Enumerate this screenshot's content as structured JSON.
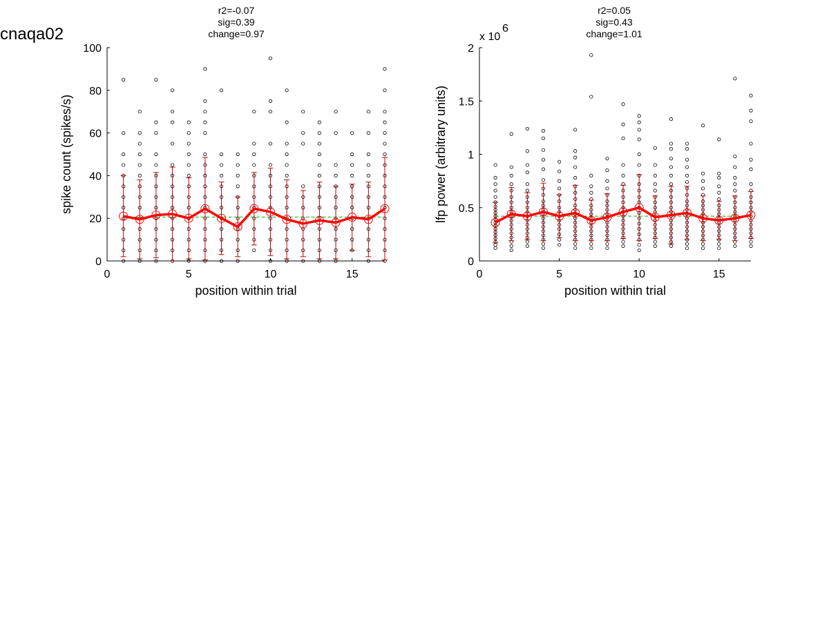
{
  "figure_title": "cnaqa02",
  "chart_data": [
    {
      "type": "scatter",
      "title_lines": [
        "r2=-0.07",
        "sig=0.39",
        "change=0.97"
      ],
      "xlabel": "position within trial",
      "ylabel": "spike count (spikes/s)",
      "xlim": [
        0,
        17
      ],
      "ylim": [
        0,
        100
      ],
      "xticks": [
        0,
        5,
        10,
        15
      ],
      "yticks": [
        0,
        20,
        40,
        60,
        80,
        100
      ],
      "ytick_labels": [
        "0",
        "20",
        "40",
        "60",
        "80",
        "100"
      ],
      "exponent_label": "",
      "x": [
        1,
        2,
        3,
        4,
        5,
        6,
        7,
        8,
        9,
        10,
        11,
        12,
        13,
        14,
        15,
        16,
        17
      ],
      "mean": [
        21,
        19.5,
        21.5,
        22,
        20,
        24.5,
        20,
        16,
        24.5,
        23,
        19.5,
        17.5,
        19,
        18,
        20.5,
        19.5,
        24.5
      ],
      "std": [
        19,
        18.5,
        20,
        22,
        19,
        24,
        17,
        14,
        17,
        20.5,
        18.5,
        15.5,
        18,
        17,
        15.5,
        17.5,
        24
      ],
      "fit": [
        20.6,
        20.6
      ],
      "points": [
        [
          0,
          5,
          10,
          15,
          20,
          25,
          30,
          35,
          40,
          45,
          50,
          60,
          85
        ],
        [
          0,
          5,
          10,
          15,
          20,
          25,
          30,
          35,
          40,
          45,
          50,
          55,
          60,
          70
        ],
        [
          0,
          5,
          10,
          15,
          20,
          25,
          30,
          35,
          40,
          45,
          50,
          60,
          65,
          85
        ],
        [
          0,
          5,
          10,
          15,
          20,
          25,
          30,
          35,
          40,
          45,
          55,
          65,
          70,
          80
        ],
        [
          0,
          5,
          10,
          15,
          20,
          25,
          30,
          35,
          40,
          45,
          50,
          55,
          60,
          65
        ],
        [
          0,
          5,
          10,
          15,
          20,
          25,
          30,
          35,
          40,
          45,
          50,
          60,
          65,
          70,
          75,
          90
        ],
        [
          0,
          5,
          10,
          15,
          20,
          25,
          30,
          35,
          40,
          45,
          50,
          80
        ],
        [
          0,
          5,
          10,
          15,
          20,
          25,
          30,
          35,
          40,
          45,
          50
        ],
        [
          5,
          10,
          15,
          20,
          25,
          30,
          35,
          40,
          45,
          50,
          55,
          70
        ],
        [
          0,
          5,
          10,
          15,
          20,
          25,
          30,
          35,
          40,
          45,
          55,
          70,
          75,
          95
        ],
        [
          0,
          5,
          10,
          15,
          20,
          25,
          30,
          35,
          40,
          45,
          50,
          55,
          65,
          80
        ],
        [
          0,
          5,
          10,
          15,
          20,
          25,
          30,
          35,
          55,
          60,
          70
        ],
        [
          0,
          5,
          10,
          15,
          20,
          25,
          30,
          35,
          40,
          45,
          50,
          55,
          60,
          65
        ],
        [
          0,
          5,
          10,
          15,
          20,
          25,
          30,
          35,
          40,
          45,
          60,
          70
        ],
        [
          5,
          10,
          15,
          20,
          25,
          30,
          35,
          40,
          45,
          50,
          60
        ],
        [
          0,
          5,
          10,
          15,
          20,
          25,
          30,
          35,
          40,
          45,
          50,
          60,
          70
        ],
        [
          0,
          5,
          10,
          15,
          20,
          25,
          30,
          35,
          40,
          45,
          50,
          55,
          60,
          65,
          70,
          80,
          90
        ]
      ],
      "colors": {
        "points": "#000000",
        "mean": "#ff0000",
        "errorbar": "#c00000",
        "fit": "#00b000"
      }
    },
    {
      "type": "scatter",
      "title_lines": [
        "r2=0.05",
        "sig=0.43",
        "change=1.01"
      ],
      "xlabel": "position within trial",
      "ylabel": "lfp power (arbitrary units)",
      "xlim": [
        0,
        17
      ],
      "ylim": [
        0,
        2
      ],
      "xticks": [
        0,
        5,
        10,
        15
      ],
      "yticks": [
        0,
        0.5,
        1,
        1.5,
        2
      ],
      "ytick_labels": [
        "0",
        "0.5",
        "1",
        "1.5",
        "2"
      ],
      "exponent_label": "x 10",
      "exponent_power": "6",
      "x": [
        1,
        2,
        3,
        4,
        5,
        6,
        7,
        8,
        9,
        10,
        11,
        12,
        13,
        14,
        15,
        16,
        17
      ],
      "mean": [
        0.36,
        0.44,
        0.42,
        0.46,
        0.42,
        0.45,
        0.38,
        0.41,
        0.46,
        0.5,
        0.41,
        0.43,
        0.45,
        0.4,
        0.38,
        0.4,
        0.43
      ],
      "std": [
        0.19,
        0.25,
        0.22,
        0.27,
        0.2,
        0.26,
        0.19,
        0.22,
        0.25,
        0.31,
        0.2,
        0.27,
        0.25,
        0.21,
        0.18,
        0.21,
        0.22
      ],
      "fit": [
        0.42,
        0.42
      ],
      "points": [
        [
          0.12,
          0.15,
          0.18,
          0.21,
          0.24,
          0.27,
          0.3,
          0.33,
          0.36,
          0.39,
          0.42,
          0.45,
          0.48,
          0.51,
          0.55,
          0.6,
          0.66,
          0.72,
          0.78,
          0.9
        ],
        [
          0.1,
          0.14,
          0.18,
          0.22,
          0.26,
          0.3,
          0.34,
          0.38,
          0.42,
          0.46,
          0.5,
          0.55,
          0.6,
          0.66,
          0.72,
          0.8,
          0.88,
          1.19
        ],
        [
          0.14,
          0.18,
          0.22,
          0.26,
          0.3,
          0.34,
          0.38,
          0.42,
          0.46,
          0.5,
          0.55,
          0.6,
          0.66,
          0.72,
          0.83,
          0.9,
          1.03,
          1.24
        ],
        [
          0.12,
          0.16,
          0.2,
          0.24,
          0.28,
          0.32,
          0.36,
          0.4,
          0.44,
          0.48,
          0.52,
          0.56,
          0.62,
          0.68,
          0.76,
          0.86,
          0.95,
          1.04,
          1.15,
          1.22
        ],
        [
          0.15,
          0.2,
          0.25,
          0.3,
          0.34,
          0.38,
          0.42,
          0.46,
          0.5,
          0.56,
          0.62,
          0.68,
          0.75,
          0.84,
          0.93
        ],
        [
          0.12,
          0.16,
          0.2,
          0.24,
          0.28,
          0.32,
          0.36,
          0.4,
          0.44,
          0.48,
          0.52,
          0.58,
          0.64,
          0.7,
          0.78,
          0.88,
          0.97,
          1.03,
          1.23
        ],
        [
          0.12,
          0.16,
          0.2,
          0.24,
          0.28,
          0.32,
          0.36,
          0.4,
          0.44,
          0.48,
          0.52,
          0.58,
          0.64,
          0.7,
          0.8,
          1.54,
          1.93
        ],
        [
          0.12,
          0.16,
          0.2,
          0.24,
          0.28,
          0.32,
          0.36,
          0.4,
          0.44,
          0.48,
          0.52,
          0.56,
          0.62,
          0.68,
          0.75,
          0.85,
          0.96
        ],
        [
          0.14,
          0.18,
          0.22,
          0.26,
          0.3,
          0.34,
          0.38,
          0.42,
          0.46,
          0.5,
          0.55,
          0.6,
          0.66,
          0.72,
          0.8,
          0.9,
          1.15,
          1.28,
          1.47
        ],
        [
          0.1,
          0.15,
          0.2,
          0.25,
          0.3,
          0.35,
          0.4,
          0.45,
          0.5,
          0.55,
          0.6,
          0.66,
          0.72,
          0.8,
          0.9,
          1.0,
          1.14,
          1.23,
          1.3,
          1.36
        ],
        [
          0.14,
          0.18,
          0.22,
          0.26,
          0.3,
          0.34,
          0.38,
          0.42,
          0.46,
          0.5,
          0.55,
          0.6,
          0.66,
          0.72,
          0.8,
          0.9,
          1.06
        ],
        [
          0.14,
          0.18,
          0.22,
          0.26,
          0.3,
          0.34,
          0.38,
          0.42,
          0.46,
          0.5,
          0.55,
          0.6,
          0.66,
          0.72,
          0.8,
          0.88,
          0.96,
          1.05,
          1.1,
          1.33
        ],
        [
          0.12,
          0.16,
          0.2,
          0.24,
          0.28,
          0.32,
          0.36,
          0.4,
          0.44,
          0.48,
          0.52,
          0.56,
          0.62,
          0.68,
          0.74,
          0.8,
          0.88,
          0.95,
          1.05,
          1.1
        ],
        [
          0.12,
          0.16,
          0.2,
          0.24,
          0.28,
          0.32,
          0.36,
          0.4,
          0.44,
          0.48,
          0.52,
          0.56,
          0.62,
          0.68,
          0.75,
          0.82,
          1.27
        ],
        [
          0.12,
          0.16,
          0.2,
          0.24,
          0.28,
          0.32,
          0.36,
          0.4,
          0.44,
          0.48,
          0.52,
          0.58,
          0.64,
          0.7,
          0.78,
          0.82,
          1.14
        ],
        [
          0.14,
          0.18,
          0.22,
          0.26,
          0.3,
          0.34,
          0.38,
          0.42,
          0.46,
          0.5,
          0.55,
          0.6,
          0.66,
          0.72,
          0.78,
          0.88,
          0.98,
          1.71
        ],
        [
          0.14,
          0.18,
          0.22,
          0.26,
          0.3,
          0.34,
          0.38,
          0.42,
          0.46,
          0.5,
          0.55,
          0.6,
          0.66,
          0.72,
          0.86,
          0.95,
          1.1,
          1.31,
          1.41,
          1.55
        ]
      ],
      "colors": {
        "points": "#000000",
        "mean": "#ff0000",
        "errorbar": "#c00000",
        "fit": "#00b000"
      }
    }
  ]
}
